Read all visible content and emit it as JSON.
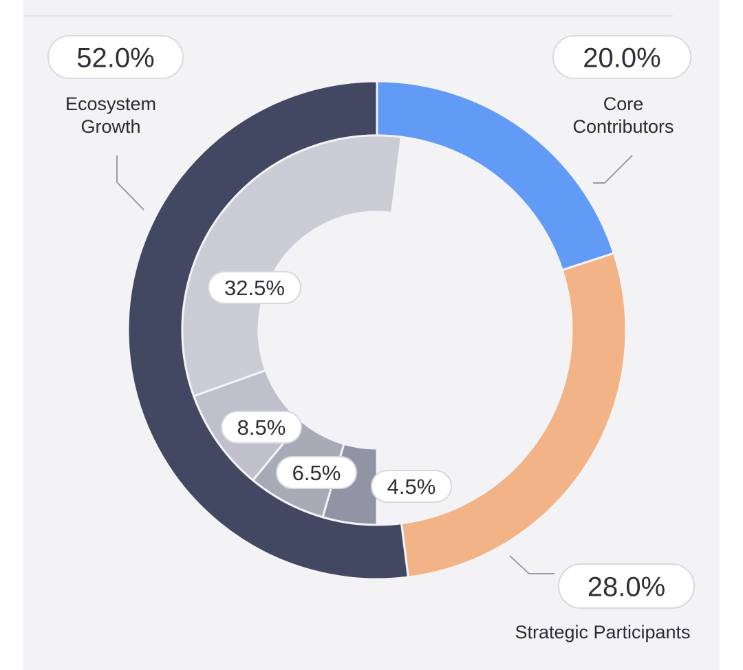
{
  "chart_data": {
    "type": "pie",
    "title": "",
    "outer_ring": {
      "segments": [
        {
          "name": "Core Contributors",
          "label_lines": [
            "Core",
            "Contributors"
          ],
          "value": 20.0,
          "value_label": "20.0%",
          "color": "#619bf5"
        },
        {
          "name": "Strategic Participants",
          "label_lines": [
            "Strategic Participants"
          ],
          "value": 28.0,
          "value_label": "28.0%",
          "color": "#f2b386"
        },
        {
          "name": "Ecosystem Growth",
          "label_lines": [
            "Ecosystem",
            "Growth"
          ],
          "value": 52.0,
          "value_label": "52.0%",
          "color": "#434862"
        }
      ]
    },
    "inner_ring": {
      "segments": [
        {
          "value": 4.5,
          "value_label": "4.5%",
          "color": "#9294a6"
        },
        {
          "value": 6.5,
          "value_label": "6.5%",
          "color": "#a9aab8"
        },
        {
          "value": 8.5,
          "value_label": "8.5%",
          "color": "#bfc0cb"
        },
        {
          "value": 32.5,
          "value_label": "32.5%",
          "color": "#cbccd6"
        }
      ]
    },
    "legend": "none",
    "colors": {
      "background": "#f3f3f6",
      "pill_fill": "#ffffff",
      "pill_border": "#d8d8df",
      "leader_line": "#9a9cab"
    }
  }
}
